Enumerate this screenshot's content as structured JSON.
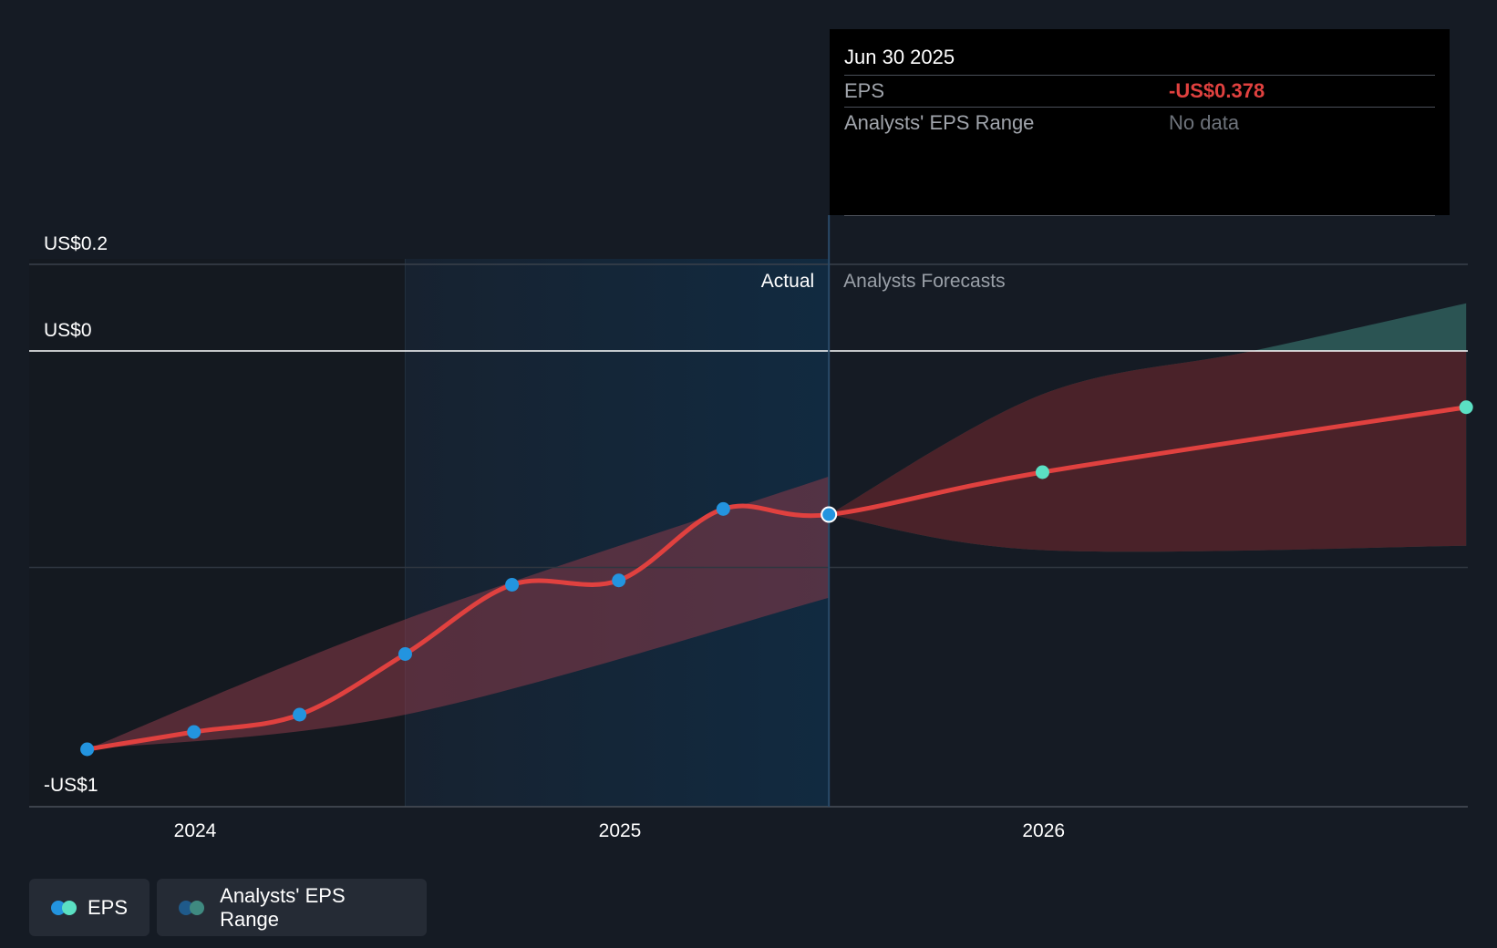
{
  "chart_data": {
    "type": "line",
    "y_axis": {
      "ticks": [
        {
          "value": 0.2,
          "label": "US$0.2"
        },
        {
          "value": 0,
          "label": "US$0"
        },
        {
          "value": -1,
          "label": "-US$1"
        }
      ],
      "ylim": [
        -1,
        0.2
      ]
    },
    "x_axis": {
      "ticks": [
        {
          "value": "2024-01-01",
          "label": "2024"
        },
        {
          "value": "2025-01-01",
          "label": "2025"
        },
        {
          "value": "2026-01-01",
          "label": "2026"
        }
      ]
    },
    "region_labels": {
      "actual": "Actual",
      "forecast": "Analysts Forecasts"
    },
    "series": [
      {
        "name": "EPS",
        "color": "#e0413f",
        "actual_points": [
          {
            "x": "2023-09-30",
            "y": -0.92
          },
          {
            "x": "2023-12-31",
            "y": -0.88
          },
          {
            "x": "2024-03-31",
            "y": -0.84
          },
          {
            "x": "2024-06-30",
            "y": -0.7
          },
          {
            "x": "2024-09-30",
            "y": -0.54
          },
          {
            "x": "2024-12-31",
            "y": -0.53
          },
          {
            "x": "2025-03-31",
            "y": -0.365
          },
          {
            "x": "2025-06-30",
            "y": -0.378
          }
        ],
        "forecast_points": [
          {
            "x": "2025-06-30",
            "y": -0.378
          },
          {
            "x": "2025-12-31",
            "y": -0.28
          },
          {
            "x": "2026-12-31",
            "y": -0.13
          }
        ]
      }
    ],
    "ranges": [
      {
        "name": "Analysts' EPS Range",
        "color": "#3f7f76",
        "upper": [
          {
            "x": "2025-06-30",
            "y": -0.378
          },
          {
            "x": "2025-12-31",
            "y": -0.1
          },
          {
            "x": "2026-06-30",
            "y": 0.0
          },
          {
            "x": "2026-12-31",
            "y": 0.11
          }
        ],
        "lower": [
          {
            "x": "2025-06-30",
            "y": -0.378
          },
          {
            "x": "2025-12-31",
            "y": -0.46
          },
          {
            "x": "2026-12-31",
            "y": -0.45
          }
        ]
      }
    ],
    "past_band": {
      "upper": [
        {
          "x": "2023-09-30",
          "y": -0.92
        },
        {
          "x": "2024-06-30",
          "y": -0.62
        },
        {
          "x": "2025-06-30",
          "y": -0.29
        }
      ],
      "lower": [
        {
          "x": "2023-09-30",
          "y": -0.92
        },
        {
          "x": "2024-06-30",
          "y": -0.84
        },
        {
          "x": "2025-06-30",
          "y": -0.57
        }
      ]
    },
    "highlight_x": "2025-06-30",
    "legend": [
      "EPS",
      "Analysts' EPS Range"
    ]
  },
  "tooltip": {
    "date": "Jun 30 2025",
    "rows": [
      {
        "label": "EPS",
        "value": "-US$0.378",
        "value_color": "#e0413f"
      },
      {
        "label": "Analysts' EPS Range",
        "value": "No data",
        "value_color": "#6e737b"
      }
    ]
  },
  "legend": {
    "eps_label": "EPS",
    "range_label": "Analysts' EPS Range",
    "eps_colors": [
      "#2394df",
      "#5be0c3"
    ],
    "range_colors": [
      "#1f5a8a",
      "#3f8a80"
    ]
  }
}
